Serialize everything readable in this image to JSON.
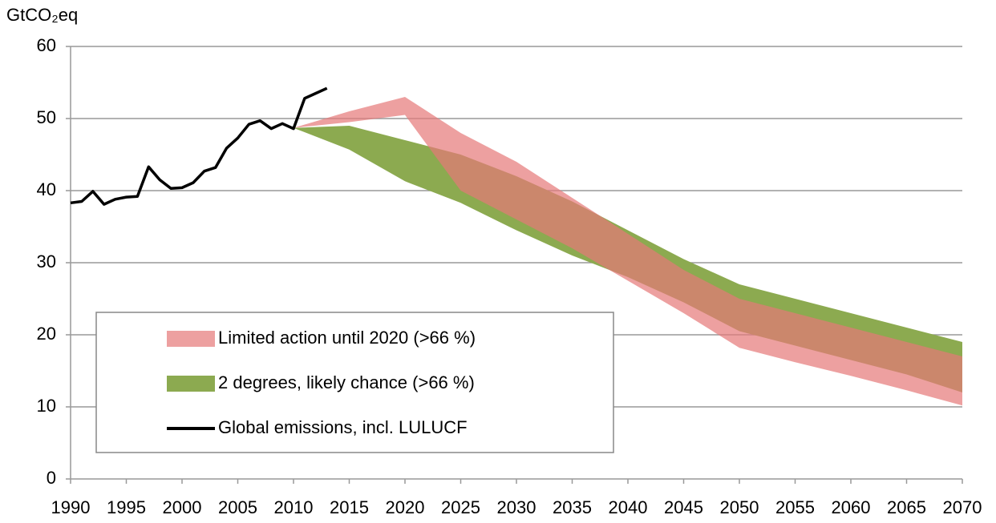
{
  "chart_data": {
    "type": "line",
    "y_label": "GtCO₂eq",
    "xlim": [
      1990,
      2070
    ],
    "xticks": [
      1990,
      1995,
      2000,
      2005,
      2010,
      2015,
      2020,
      2025,
      2030,
      2035,
      2040,
      2045,
      2050,
      2055,
      2060,
      2065,
      2070
    ],
    "ylim": [
      0,
      60
    ],
    "yticks": [
      0,
      10,
      20,
      30,
      40,
      50,
      60
    ],
    "grid": true,
    "series": [
      {
        "name": "2 degrees, likely chance (>66 %)",
        "type": "band",
        "color": "#8caa50",
        "opacity": 1,
        "x": [
          2010,
          2015,
          2020,
          2025,
          2030,
          2035,
          2040,
          2045,
          2050,
          2055,
          2060,
          2065,
          2070
        ],
        "upper": [
          48.7,
          49,
          47,
          45,
          42,
          38.5,
          34.5,
          30.5,
          27,
          25,
          23,
          21,
          19
        ],
        "lower": [
          48.7,
          45.7,
          41.3,
          38.3,
          34.5,
          31,
          28,
          24.5,
          20.5,
          18.5,
          16.5,
          14.5,
          12
        ]
      },
      {
        "name": "Limited action until 2020 (>66 %)",
        "type": "band",
        "color": "#e67878",
        "opacity": 0.7,
        "x": [
          2010,
          2015,
          2020,
          2025,
          2030,
          2035,
          2040,
          2045,
          2050,
          2055,
          2060,
          2065,
          2070
        ],
        "upper": [
          48.7,
          51,
          53,
          48,
          44,
          39,
          34,
          29,
          25,
          23,
          21,
          19,
          17
        ],
        "lower": [
          48.7,
          49.5,
          50.5,
          40,
          36,
          32,
          27.5,
          23,
          18.2,
          16.2,
          14.3,
          12.3,
          10.2
        ]
      },
      {
        "name": "Global emissions, incl. LULUCF",
        "type": "line",
        "color": "#000000",
        "x": [
          1990,
          1991,
          1992,
          1993,
          1994,
          1995,
          1996,
          1997,
          1998,
          1999,
          2000,
          2001,
          2002,
          2003,
          2004,
          2005,
          2006,
          2007,
          2008,
          2009,
          2010,
          2011,
          2012,
          2013
        ],
        "values": [
          38.3,
          38.5,
          39.9,
          38.1,
          38.8,
          39.1,
          39.2,
          43.3,
          41.5,
          40.3,
          40.4,
          41.1,
          42.7,
          43.2,
          45.9,
          47.3,
          49.2,
          49.7,
          48.6,
          49.3,
          48.6,
          52.8,
          53.5,
          54.2
        ]
      }
    ],
    "legend_order": [
      1,
      0,
      2
    ]
  }
}
